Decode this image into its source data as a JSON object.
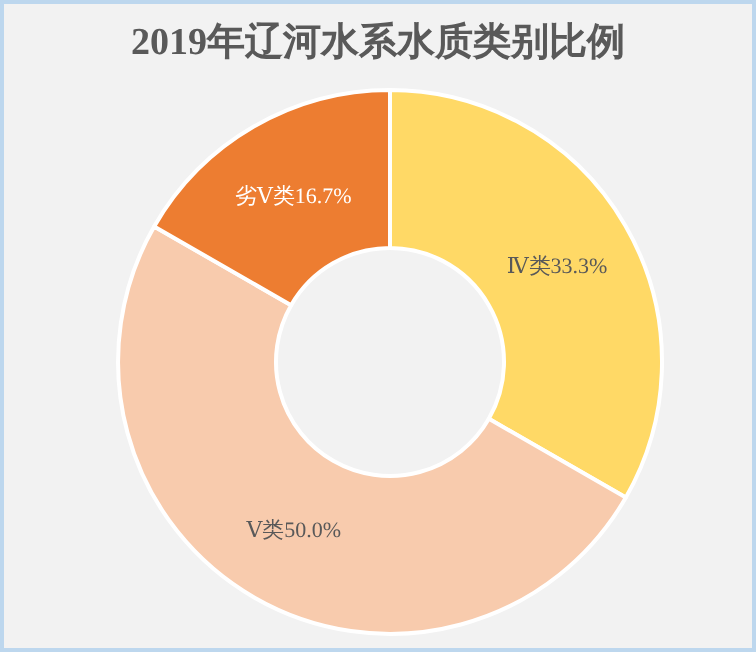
{
  "chart_data": {
    "type": "donut",
    "title": "2019年辽河水系水质类别比例",
    "categories": [
      "Ⅳ类",
      "Ⅴ类",
      "劣Ⅴ类"
    ],
    "values": [
      33.3,
      50.0,
      16.7
    ],
    "value_labels": [
      "33.3%",
      "50.0%",
      "16.7%"
    ],
    "colors": [
      "#ffd966",
      "#f8cbad",
      "#ed7d31"
    ]
  }
}
